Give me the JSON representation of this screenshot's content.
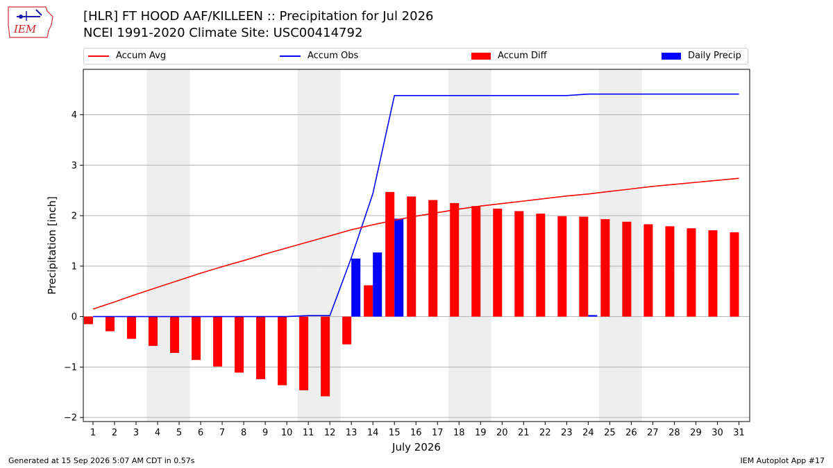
{
  "header": {
    "logo_text": "IEM",
    "title": "[HLR] FT HOOD AAF/KILLEEN :: Precipitation for Jul 2026",
    "subtitle": "NCEI 1991-2020 Climate Site: USC00414792"
  },
  "footer": {
    "generated": "Generated at 15 Sep 2026 5:07 AM CDT in 0.57s",
    "app": "IEM Autoplot App #17"
  },
  "colors": {
    "accum_avg": "#ff0000",
    "accum_obs": "#0000ff",
    "accum_diff": "#ff0000",
    "daily_precip": "#0000ff",
    "weekend_shade": "#eeeeee"
  },
  "chart_data": {
    "type": "bar",
    "xlabel": "July 2026",
    "ylabel": "Precipitation [inch]",
    "ylim": [
      -2.08,
      4.9
    ],
    "xlim": [
      0.55,
      31.5
    ],
    "yticks": [
      -2,
      -1,
      0,
      1,
      2,
      3,
      4
    ],
    "ytick_labels": [
      "−2",
      "−1",
      "0",
      "1",
      "2",
      "3",
      "4"
    ],
    "x": [
      1,
      2,
      3,
      4,
      5,
      6,
      7,
      8,
      9,
      10,
      11,
      12,
      13,
      14,
      15,
      16,
      17,
      18,
      19,
      20,
      21,
      22,
      23,
      24,
      25,
      26,
      27,
      28,
      29,
      30,
      31
    ],
    "weekend_days": [
      4,
      5,
      11,
      12,
      18,
      19,
      25,
      26
    ],
    "grid": "y",
    "legend_position": "top",
    "legend": [
      "Accum Avg",
      "Accum Obs",
      "Accum Diff",
      "Daily Precip"
    ],
    "series": [
      {
        "name": "Accum Avg",
        "kind": "line",
        "values": [
          0.15,
          0.29,
          0.44,
          0.58,
          0.72,
          0.86,
          0.99,
          1.11,
          1.24,
          1.36,
          1.48,
          1.6,
          1.72,
          1.82,
          1.91,
          1.99,
          2.06,
          2.13,
          2.19,
          2.24,
          2.29,
          2.34,
          2.39,
          2.43,
          2.48,
          2.53,
          2.58,
          2.62,
          2.66,
          2.7,
          2.74
        ]
      },
      {
        "name": "Accum Obs",
        "kind": "line",
        "values": [
          0,
          0,
          0,
          0,
          0,
          0,
          0,
          0,
          0,
          0,
          0.02,
          0.02,
          1.17,
          2.44,
          4.38,
          4.38,
          4.38,
          4.38,
          4.38,
          4.38,
          4.38,
          4.38,
          4.38,
          4.41,
          4.41,
          4.41,
          4.41,
          4.41,
          4.41,
          4.41,
          4.41
        ]
      },
      {
        "name": "Accum Diff",
        "kind": "bar",
        "values": [
          -0.15,
          -0.29,
          -0.44,
          -0.58,
          -0.72,
          -0.86,
          -0.99,
          -1.11,
          -1.24,
          -1.36,
          -1.46,
          -1.58,
          -0.55,
          0.62,
          2.47,
          2.38,
          2.31,
          2.25,
          2.19,
          2.14,
          2.09,
          2.04,
          1.99,
          1.98,
          1.93,
          1.88,
          1.83,
          1.79,
          1.75,
          1.71,
          1.67
        ]
      },
      {
        "name": "Daily Precip",
        "kind": "bar",
        "values": [
          0,
          0,
          0,
          0,
          0,
          0,
          0,
          0,
          0,
          0,
          0,
          0,
          1.15,
          1.27,
          1.94,
          0,
          0,
          0,
          0,
          0,
          0,
          0,
          0,
          0.03,
          0,
          0,
          0,
          0,
          0,
          0,
          0
        ]
      }
    ]
  }
}
